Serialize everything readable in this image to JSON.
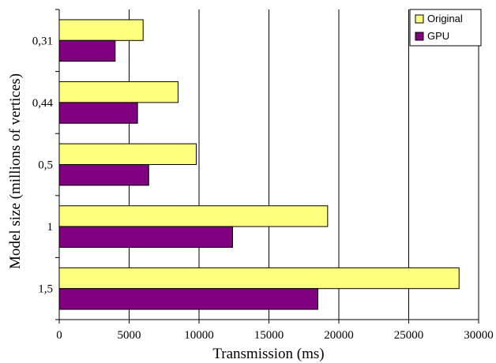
{
  "chart_data": {
    "type": "bar",
    "orientation": "horizontal",
    "categories": [
      "0,31",
      "0,44",
      "0,5",
      "1",
      "1,5"
    ],
    "series": [
      {
        "name": "Original",
        "values": [
          6000,
          8500,
          9800,
          19200,
          28600
        ],
        "color": "#ffff80"
      },
      {
        "name": "GPU",
        "values": [
          4000,
          5600,
          6400,
          12400,
          18500
        ],
        "color": "#800080"
      }
    ],
    "xlabel": "Transmission (ms)",
    "ylabel": "Model size (millions of vertices)",
    "xlim": [
      0,
      30000
    ],
    "xticks": [
      "0",
      "5000",
      "10000",
      "15000",
      "20000",
      "25000",
      "30000"
    ],
    "grid": "vertical",
    "legend_position": "top-right"
  }
}
